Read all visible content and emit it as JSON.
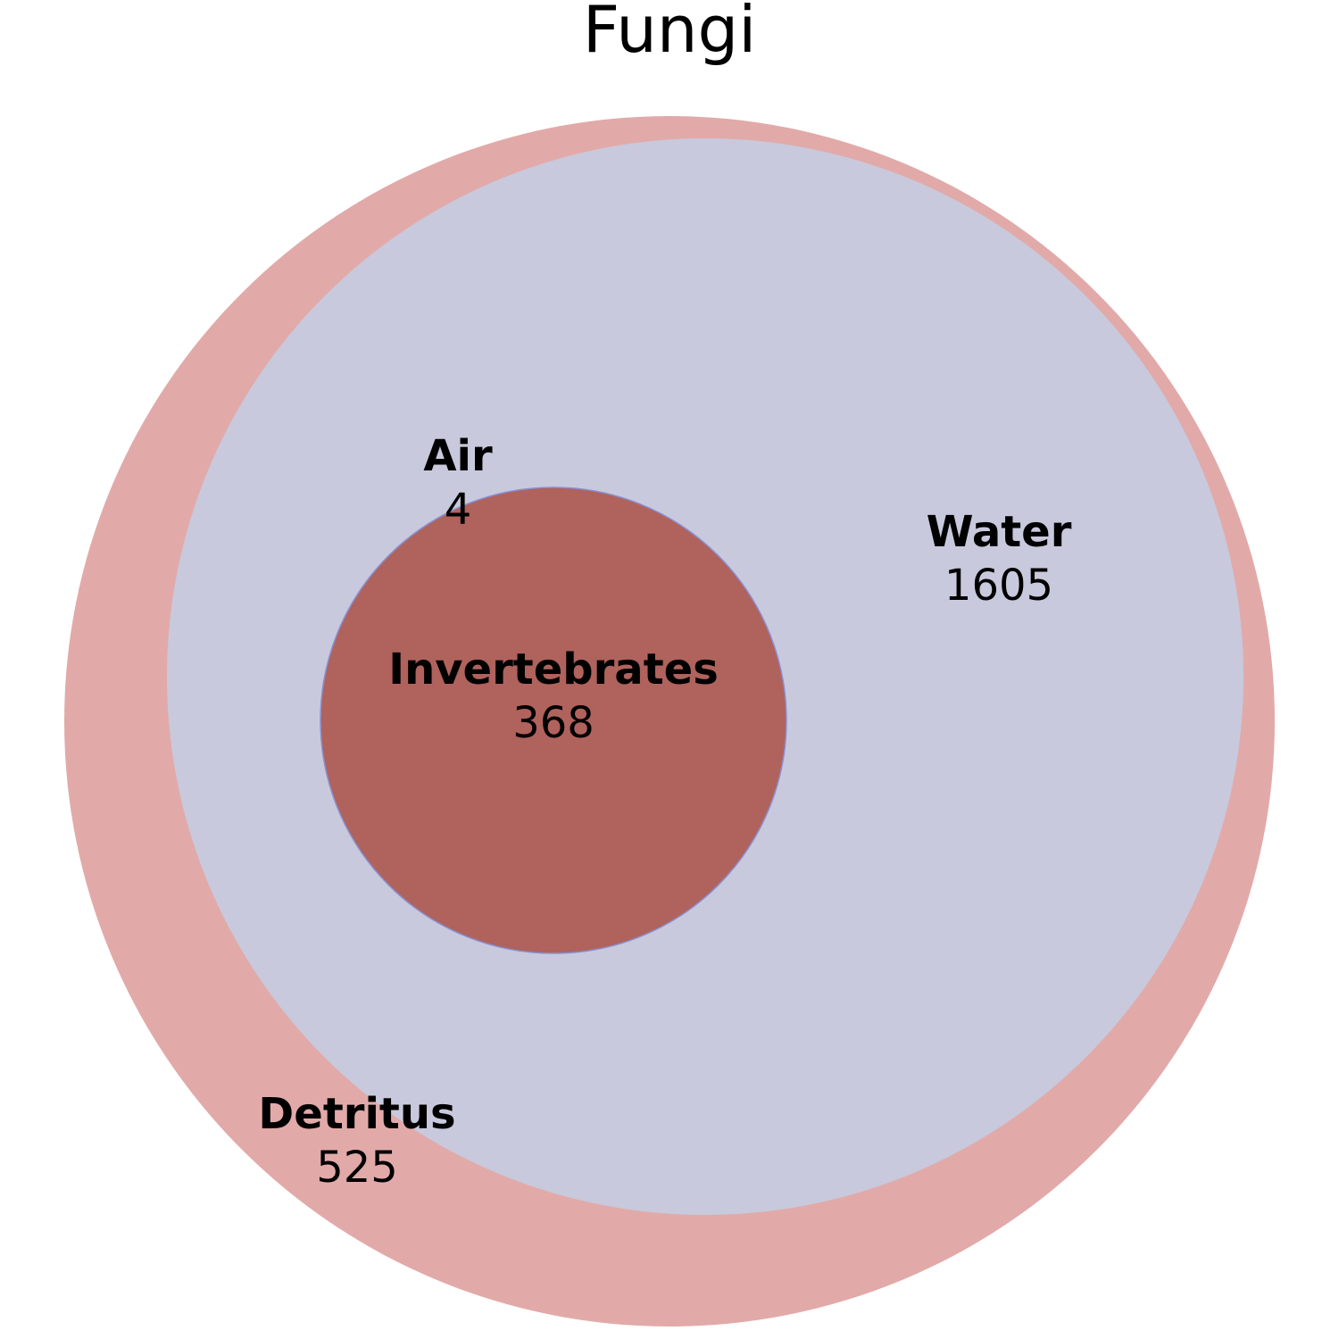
{
  "title": "Fungi",
  "colors": {
    "detritus": "#e1aaa9",
    "water": "#c8c9dc",
    "invertebrates": "#b0625d",
    "invertebrates_outline": "#8a8fcf",
    "air": "#c8c9dc"
  },
  "sets": {
    "detritus": {
      "name": "Detritus",
      "count": "525"
    },
    "water": {
      "name": "Water",
      "count": "1605"
    },
    "air": {
      "name": "Air",
      "count": "4"
    },
    "invertebrates": {
      "name": "Invertebrates",
      "count": "368"
    }
  }
}
